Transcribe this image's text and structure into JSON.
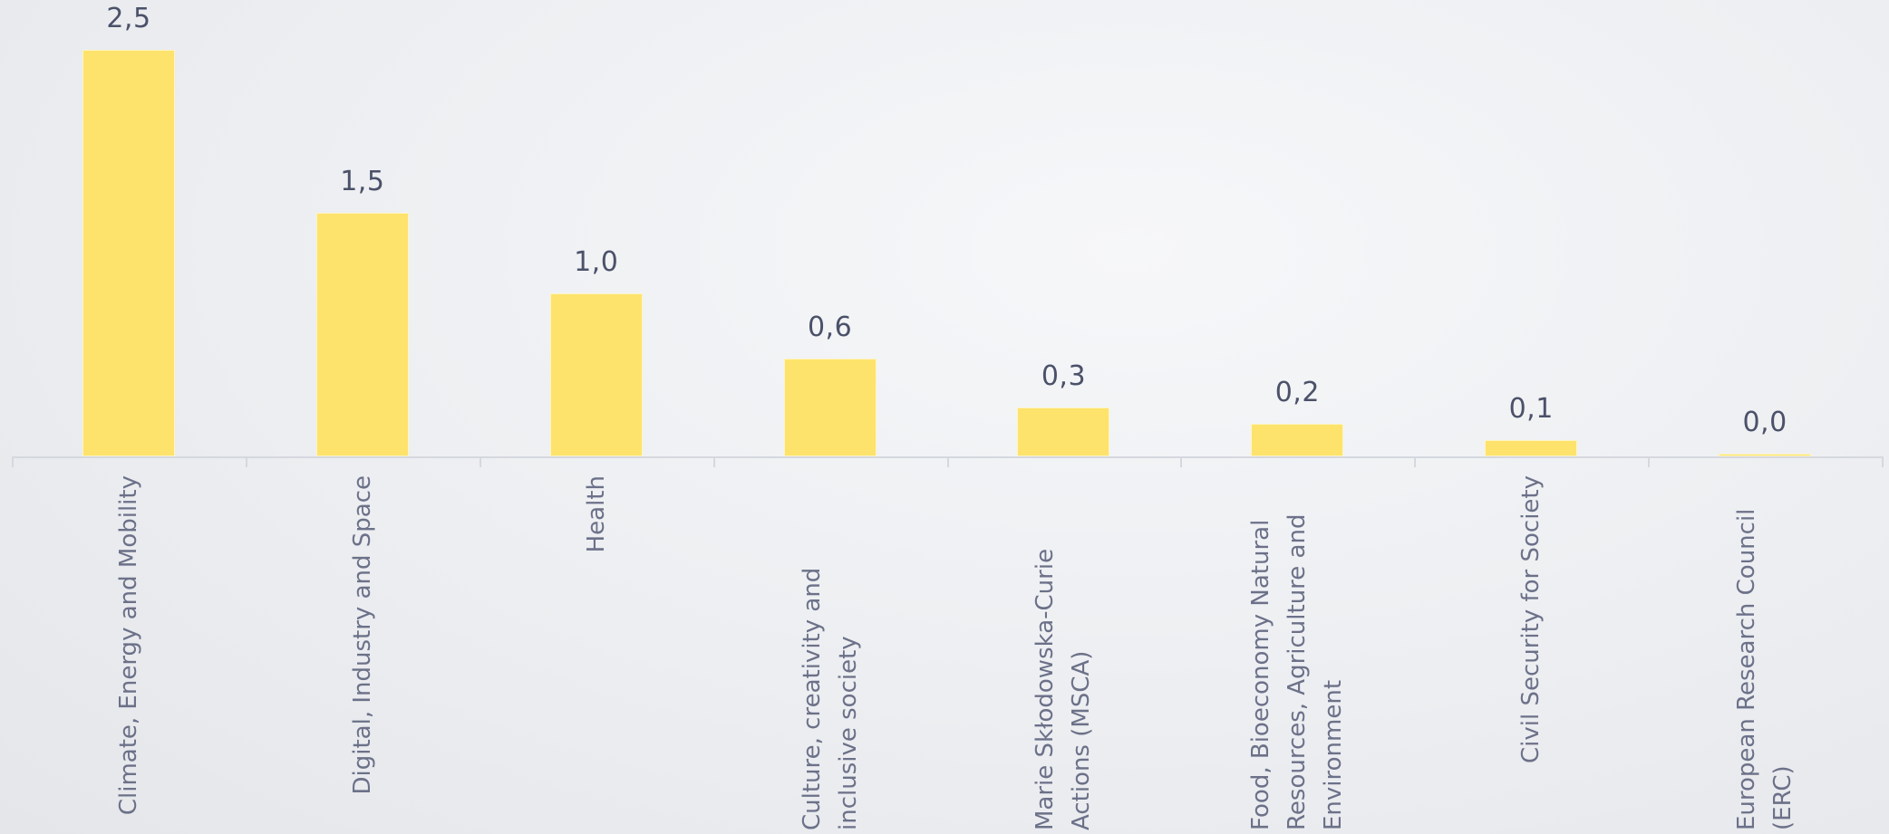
{
  "chart_data": {
    "type": "bar",
    "categories": [
      "Climate, Energy and Mobility",
      "Digital, Industry and Space",
      "Health",
      "Culture, creativity and inclusive society",
      "Marie Skłodowska-Curie Actions (MSCA)",
      "Food, Bioeconomy Natural Resources, Agriculture and Environment",
      "Civil Security for Society",
      "European Research Council (ERC)"
    ],
    "values": [
      2.5,
      1.5,
      1.0,
      0.6,
      0.3,
      0.2,
      0.1,
      0.0
    ],
    "value_labels": [
      "2,5",
      "1,5",
      "1,0",
      "0,6",
      "0,3",
      "0,2",
      "0,1",
      "0,0"
    ],
    "color": "#fde36c",
    "ylim": [
      0,
      2.5
    ]
  }
}
